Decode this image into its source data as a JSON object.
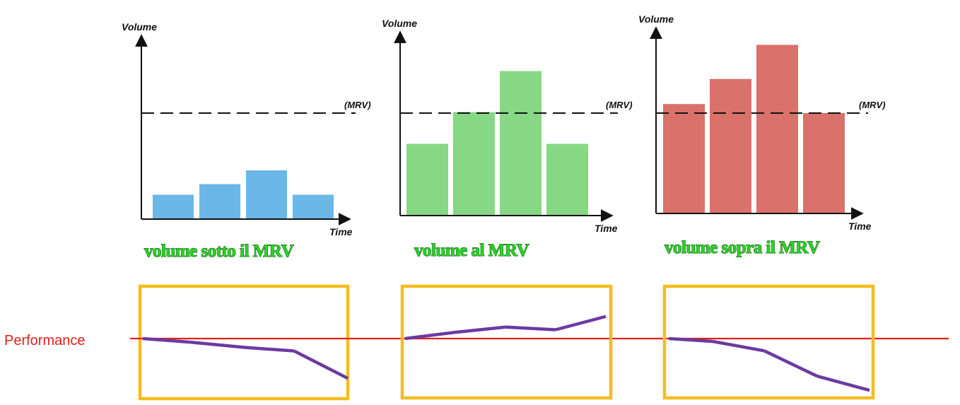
{
  "colors": {
    "below": "#6bb7e8",
    "at": "#86d884",
    "above": "#da716b",
    "caption_fill": "#2ed12a",
    "frame": "#f5bd1f",
    "performance_line": "#e0201a",
    "trend": "#6c3aa0"
  },
  "performance_label": "Performance",
  "chart_data": [
    {
      "type": "bar",
      "xlabel": "Time",
      "ylabel": "Volume",
      "threshold": {
        "label": "(MRV)",
        "value": 100
      },
      "values": [
        23,
        33,
        46,
        23
      ],
      "ylim": [
        0,
        135
      ],
      "caption": "volume sotto il MRV",
      "color": "#6bb7e8",
      "performance": [
        0.0,
        -0.4,
        -1.0,
        -1.4,
        -4.5
      ]
    },
    {
      "type": "bar",
      "xlabel": "Time",
      "ylabel": "Volume",
      "threshold": {
        "label": "(MRV)",
        "value": 100
      },
      "values": [
        70,
        101,
        141,
        70
      ],
      "ylim": [
        0,
        200
      ],
      "caption": "volume al MRV",
      "color": "#86d884",
      "performance": [
        0.0,
        0.7,
        1.3,
        1.0,
        2.5
      ]
    },
    {
      "type": "bar",
      "xlabel": "Time",
      "ylabel": "Volume",
      "threshold": {
        "label": "(MRV)",
        "value": 100
      },
      "values": [
        109,
        134,
        168,
        100
      ],
      "ylim": [
        0,
        200
      ],
      "caption": "volume sopra il MRV",
      "color": "#da716b",
      "performance": [
        0.0,
        -0.3,
        -1.3,
        -4.0,
        -5.5
      ]
    }
  ]
}
